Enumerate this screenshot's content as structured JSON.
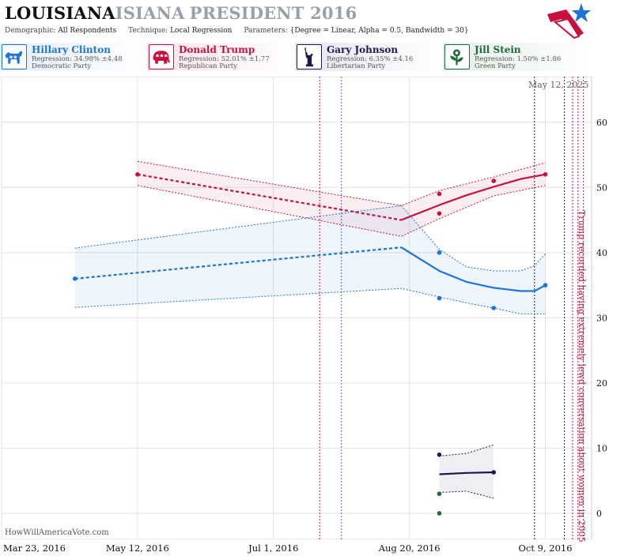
{
  "header": {
    "title_state": "LOUISIANA",
    "title_overlap": "ISIANA",
    "title_rest": "PRESIDENT 2016",
    "demographic_label": "Demographic:",
    "demographic_value": "All Respondents",
    "technique_label": "Technique:",
    "technique_value": "Local Regression",
    "parameters_label": "Parameters:",
    "parameters_value": "{Degree = Linear, Alpha = 0.5, Bandwidth = 30}"
  },
  "candidates": [
    {
      "name": "Hillary Clinton",
      "regression": "Regression: 34.98% ±4.48",
      "party": "Democratic Party",
      "color": "#1e73d8",
      "icon": "donkey-icon"
    },
    {
      "name": "Donald Trump",
      "regression": "Regression: 52.01% ±1.77",
      "party": "Republican Party",
      "color": "#c8103e",
      "icon": "elephant-icon"
    },
    {
      "name": "Gary Johnson",
      "regression": "Regression: 6.35% ±4.16",
      "party": "Libertarian Party",
      "color": "#1c1850",
      "icon": "liberty-statue-icon"
    },
    {
      "name": "Jill Stein",
      "regression": "Regression: 1.50% ±1.86",
      "party": "Green Party",
      "color": "#1f6a3a",
      "icon": "flower-icon"
    }
  ],
  "footer": "HowWillAmericaVote.com",
  "datestamp": "May 12, 2025",
  "chart_data": {
    "type": "line",
    "x_ticks": [
      "Mar 23, 2016",
      "May 12, 2016",
      "Jul 1, 2016",
      "Aug 20, 2016",
      "Oct 9, 2016"
    ],
    "y_ticks": [
      0,
      10,
      20,
      30,
      40,
      50,
      60
    ],
    "xlim": [
      "2016-03-23",
      "2016-10-26"
    ],
    "ylim": [
      -4,
      67
    ],
    "grid": true,
    "annotation": "Trump recorded having extremely lewd conversation about women in 2005",
    "event_lines": [
      {
        "date": "2016-07-18",
        "color": "#c8103e"
      },
      {
        "date": "2016-07-26",
        "color": "#1e73d8"
      },
      {
        "date": "2016-10-05",
        "color": "#1c1850"
      },
      {
        "date": "2016-10-16",
        "color": "#1c1850"
      },
      {
        "date": "2016-10-19",
        "color": "#c8103e"
      },
      {
        "date": "2016-10-21",
        "color": "#c8103e"
      },
      {
        "date": "2016-10-23",
        "color": "#c8103e"
      }
    ],
    "series": [
      {
        "name": "Donald Trump",
        "color": "#c8103e",
        "points": [
          [
            "2016-05-12",
            52
          ],
          [
            "2016-08-31",
            49
          ],
          [
            "2016-08-31",
            46
          ],
          [
            "2016-09-20",
            51
          ],
          [
            "2016-10-09",
            52
          ]
        ],
        "trend_dashed": [
          [
            "2016-05-12",
            52
          ],
          [
            "2016-08-17",
            45
          ]
        ],
        "trend_solid": [
          [
            "2016-08-17",
            45
          ],
          [
            "2016-08-31",
            47.3
          ],
          [
            "2016-09-10",
            48.8
          ],
          [
            "2016-09-20",
            50.1
          ],
          [
            "2016-09-30",
            51.3
          ],
          [
            "2016-10-09",
            52
          ]
        ],
        "upper": [
          [
            "2016-05-12",
            54
          ],
          [
            "2016-08-17",
            47.2
          ],
          [
            "2016-08-31",
            49.5
          ],
          [
            "2016-09-20",
            51.6
          ],
          [
            "2016-10-09",
            53.8
          ]
        ],
        "lower": [
          [
            "2016-05-12",
            50.3
          ],
          [
            "2016-08-17",
            42.5
          ],
          [
            "2016-08-31",
            45.2
          ],
          [
            "2016-09-20",
            48.7
          ],
          [
            "2016-10-09",
            50.3
          ]
        ]
      },
      {
        "name": "Hillary Clinton",
        "color": "#1e73d8",
        "points": [
          [
            "2016-04-19",
            36
          ],
          [
            "2016-08-31",
            40
          ],
          [
            "2016-08-31",
            33
          ],
          [
            "2016-09-20",
            31.5
          ],
          [
            "2016-10-09",
            35
          ]
        ],
        "trend_dashed": [
          [
            "2016-04-19",
            36
          ],
          [
            "2016-08-17",
            40.8
          ]
        ],
        "trend_solid": [
          [
            "2016-08-17",
            40.8
          ],
          [
            "2016-08-24",
            39
          ],
          [
            "2016-08-31",
            37.2
          ],
          [
            "2016-09-10",
            35.5
          ],
          [
            "2016-09-20",
            34.6
          ],
          [
            "2016-09-30",
            34.1
          ],
          [
            "2016-10-05",
            34.1
          ],
          [
            "2016-10-09",
            35
          ]
        ],
        "upper": [
          [
            "2016-04-19",
            40.7
          ],
          [
            "2016-08-17",
            47.2
          ],
          [
            "2016-08-31",
            40.5
          ],
          [
            "2016-09-10",
            37.8
          ],
          [
            "2016-09-20",
            37.2
          ],
          [
            "2016-09-30",
            37.2
          ],
          [
            "2016-10-05",
            38
          ],
          [
            "2016-10-09",
            39.8
          ]
        ],
        "lower": [
          [
            "2016-04-19",
            31.6
          ],
          [
            "2016-08-17",
            34.5
          ],
          [
            "2016-08-31",
            33.2
          ],
          [
            "2016-09-10",
            32.3
          ],
          [
            "2016-09-20",
            31.5
          ],
          [
            "2016-09-30",
            30.6
          ],
          [
            "2016-10-09",
            30.6
          ]
        ]
      },
      {
        "name": "Gary Johnson",
        "color": "#1c1850",
        "points": [
          [
            "2016-08-31",
            9
          ],
          [
            "2016-09-20",
            6.3
          ]
        ],
        "trend_dashed": [],
        "trend_solid": [
          [
            "2016-08-31",
            6
          ],
          [
            "2016-09-10",
            6.2
          ],
          [
            "2016-09-20",
            6.3
          ]
        ],
        "upper": [
          [
            "2016-08-31",
            8.8
          ],
          [
            "2016-09-10",
            9.2
          ],
          [
            "2016-09-20",
            10.5
          ]
        ],
        "lower": [
          [
            "2016-08-31",
            3.2
          ],
          [
            "2016-09-10",
            3.4
          ],
          [
            "2016-09-20",
            2.3
          ]
        ]
      },
      {
        "name": "Jill Stein",
        "color": "#1f6a3a",
        "points": [
          [
            "2016-08-31",
            3
          ],
          [
            "2016-08-31",
            0
          ]
        ],
        "trend_dashed": [],
        "trend_solid": [],
        "upper": [],
        "lower": []
      }
    ]
  }
}
